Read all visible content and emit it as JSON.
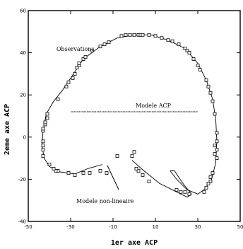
{
  "chart_data": {
    "type": "scatter",
    "xlabel": "1er axe ACP",
    "ylabel": "2eme axe ACP",
    "xlim": [
      -50,
      50
    ],
    "ylim": [
      -40,
      60
    ],
    "xticks": [
      -50,
      -30,
      -10,
      10,
      30,
      50
    ],
    "yticks": [
      -40,
      -20,
      0,
      20,
      40,
      60
    ],
    "grid": false,
    "annotations": {
      "observations": "Observations",
      "modele_acp": "Modele ACP",
      "modele_non_lineaire": "Modele non-lineaire"
    },
    "observations": [
      [
        -6,
        48
      ],
      [
        -4,
        48.5
      ],
      [
        -2,
        48.5
      ],
      [
        0,
        48.5
      ],
      [
        2,
        48.5
      ],
      [
        3,
        48.5
      ],
      [
        4,
        48.5
      ],
      [
        7,
        48.5
      ],
      [
        10,
        48
      ],
      [
        13,
        47
      ],
      [
        16,
        46
      ],
      [
        18,
        45.5
      ],
      [
        21,
        44
      ],
      [
        24,
        42
      ],
      [
        25,
        41
      ],
      [
        26,
        40
      ],
      [
        28,
        37
      ],
      [
        30,
        34
      ],
      [
        31,
        32
      ],
      [
        34,
        27
      ],
      [
        35,
        24
      ],
      [
        36,
        21
      ],
      [
        37,
        17
      ],
      [
        38,
        11
      ],
      [
        39,
        2
      ],
      [
        39,
        -2
      ],
      [
        38,
        -4
      ],
      [
        39,
        -6
      ],
      [
        38,
        -8
      ],
      [
        39,
        -10
      ],
      [
        37,
        -17
      ],
      [
        36,
        -19
      ],
      [
        36,
        -21
      ],
      [
        35,
        -22
      ],
      [
        34,
        -24
      ],
      [
        33,
        -26
      ],
      [
        26,
        -27
      ],
      [
        24,
        -26
      ],
      [
        22,
        -26
      ],
      [
        20,
        -25
      ],
      [
        7,
        -21
      ],
      [
        4,
        -18
      ],
      [
        2,
        -16
      ],
      [
        1,
        -15
      ],
      [
        0,
        -7
      ],
      [
        -1,
        -9
      ],
      [
        -8,
        -9
      ],
      [
        -13,
        -17
      ],
      [
        -16,
        -16
      ],
      [
        -21,
        -17
      ],
      [
        -24,
        -17
      ],
      [
        -28,
        -18
      ],
      [
        -31,
        -17
      ],
      [
        -36,
        -16
      ],
      [
        -37,
        -16
      ],
      [
        -38,
        -15
      ],
      [
        -40,
        -13
      ],
      [
        -43,
        -9
      ],
      [
        -43,
        -6
      ],
      [
        -43,
        -4
      ],
      [
        -43,
        -2
      ],
      [
        -43,
        3
      ],
      [
        -43,
        4
      ],
      [
        -42,
        6
      ],
      [
        -42,
        7
      ],
      [
        -41,
        9
      ],
      [
        -41,
        11
      ],
      [
        -36,
        18
      ],
      [
        -32,
        24
      ],
      [
        -31,
        26
      ],
      [
        -29,
        28
      ],
      [
        -28,
        30
      ],
      [
        -27,
        33
      ],
      [
        -26,
        34
      ],
      [
        -26,
        35
      ],
      [
        -24,
        37
      ],
      [
        -23,
        38
      ],
      [
        -20,
        41
      ],
      [
        -16,
        43
      ],
      [
        -14,
        44
      ],
      [
        -12,
        45
      ]
    ],
    "modele_acp": {
      "x": [
        -30,
        30
      ],
      "y": [
        12,
        12
      ]
    },
    "modele_non_lineaire": [
      [
        -15,
        -13
      ],
      [
        -22,
        -15
      ],
      [
        -28,
        -17.5
      ],
      [
        -35,
        -16.5
      ],
      [
        -40,
        -14
      ],
      [
        -42.5,
        -10
      ],
      [
        -43.5,
        -4
      ],
      [
        -43,
        3
      ],
      [
        -41.5,
        11
      ],
      [
        -38,
        17
      ],
      [
        -34,
        22
      ],
      [
        -30,
        28
      ],
      [
        -24,
        37
      ],
      [
        -16,
        43
      ],
      [
        -8,
        47
      ],
      [
        0,
        48.5
      ],
      [
        8,
        48.5
      ],
      [
        16,
        46
      ],
      [
        24,
        42
      ],
      [
        30,
        35
      ],
      [
        34,
        27
      ],
      [
        37,
        18
      ],
      [
        38.5,
        8
      ],
      [
        39,
        -2
      ],
      [
        38.5,
        -12
      ],
      [
        36.5,
        -20
      ],
      [
        33,
        -25
      ],
      [
        30,
        -27
      ],
      [
        25,
        -25
      ],
      [
        20,
        -20
      ],
      [
        17,
        -16
      ],
      [
        19,
        -16
      ],
      [
        23,
        -22
      ],
      [
        27,
        -27
      ],
      [
        25,
        -28.5
      ],
      [
        18,
        -25
      ],
      [
        12,
        -22
      ],
      [
        4,
        -15.5
      ],
      [
        -1,
        -11
      ]
    ]
  }
}
